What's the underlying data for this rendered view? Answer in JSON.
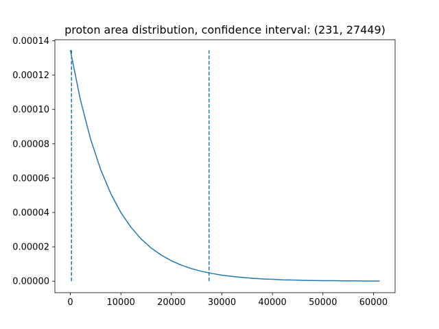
{
  "chart_data": {
    "type": "line",
    "title": "proton area distribution, confidence interval:  (231, 27449)",
    "xlabel": "",
    "ylabel": "",
    "xlim": [
      -3061,
      64283
    ],
    "ylim": [
      -6.7e-06,
      0.0001406
    ],
    "x_ticks": [
      0,
      10000,
      20000,
      30000,
      40000,
      50000,
      60000
    ],
    "x_tick_labels": [
      "0",
      "10000",
      "20000",
      "30000",
      "40000",
      "50000",
      "60000"
    ],
    "y_ticks": [
      0,
      2e-05,
      4e-05,
      6e-05,
      8e-05,
      0.0001,
      0.00012,
      0.00014
    ],
    "y_tick_labels": [
      "0.00000",
      "0.00002",
      "0.00004",
      "0.00006",
      "0.00008",
      "0.00010",
      "0.00012",
      "0.00014"
    ],
    "grid": false,
    "line_color": "#1f77b4",
    "series": [
      {
        "x": [
          0,
          2000,
          4000,
          6000,
          8000,
          10000,
          12000,
          14000,
          16000,
          18000,
          20000,
          22000,
          24000,
          26000,
          28000,
          30000,
          32000,
          34000,
          36000,
          38000,
          40000,
          42000,
          44000,
          46000,
          48000,
          50000,
          52000,
          54000,
          56000,
          58000,
          60000,
          61222
        ],
        "values": [
          0.0001345,
          0.0001055,
          8.28e-05,
          6.5e-05,
          5.1e-05,
          4e-05,
          3.14e-05,
          2.46e-05,
          1.93e-05,
          1.52e-05,
          1.19e-05,
          9.3e-06,
          7.3e-06,
          5.7e-06,
          4.5e-06,
          3.5e-06,
          2.8e-06,
          2.2e-06,
          1.7e-06,
          1.3e-06,
          1.1e-06,
          8e-07,
          7e-07,
          5e-07,
          4e-07,
          3e-07,
          3e-07,
          2e-07,
          2e-07,
          1e-07,
          1e-07,
          1e-07
        ]
      }
    ],
    "confidence_lines": [
      {
        "x": 231,
        "y_from": 0,
        "y_to": 0.0001345
      },
      {
        "x": 27449,
        "y_from": 0,
        "y_to": 0.0001345
      }
    ]
  }
}
